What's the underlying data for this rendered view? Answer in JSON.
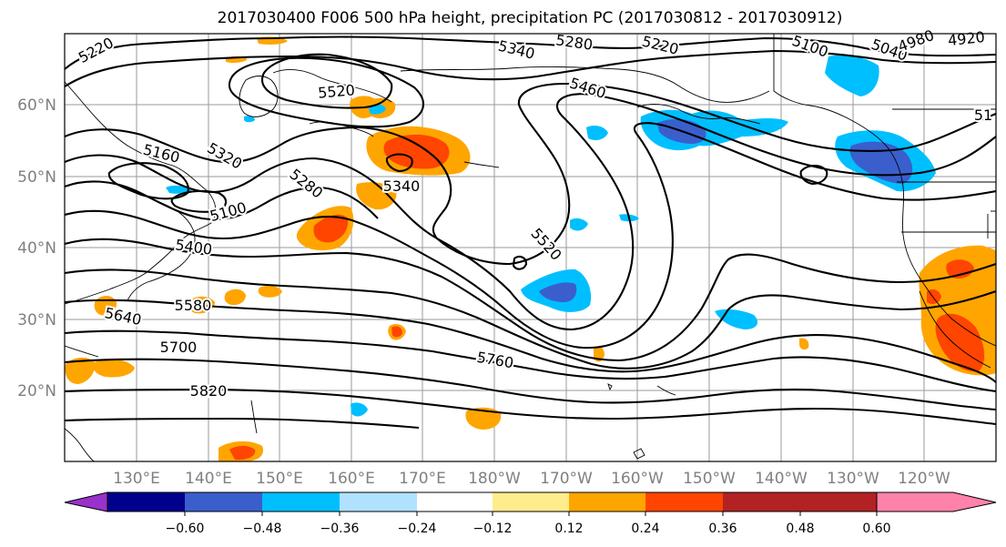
{
  "title": "2017030400 F006 500 hPa height, precipitation PC (2017030812 - 2017030912)",
  "lat_labels": [
    "60°N",
    "50°N",
    "40°N",
    "30°N",
    "20°N"
  ],
  "lon_labels": [
    "130°E",
    "140°E",
    "150°E",
    "160°E",
    "170°E",
    "180°W",
    "170°W",
    "160°W",
    "150°W",
    "140°W",
    "130°W",
    "120°W"
  ],
  "colorbar": {
    "colors": [
      "#9932cc",
      "#00008b",
      "#3a5fcd",
      "#00bfff",
      "#b0e2ff",
      "#ffffff",
      "#ffec8b",
      "#ffa500",
      "#ff4500",
      "#b22222",
      "#ff82ab"
    ],
    "tick_labels": [
      "−0.60",
      "−0.48",
      "−0.36",
      "−0.24",
      "−0.12",
      "0.12",
      "0.24",
      "0.36",
      "0.48",
      "0.60"
    ]
  },
  "contour_labels": [
    "5220",
    "5340",
    "5280",
    "5220",
    "5100",
    "5040",
    "4980",
    "4920",
    "5520",
    "5460",
    "51",
    "5160",
    "5320",
    "5280",
    "5340",
    "5100",
    "5400",
    "5520",
    "5580",
    "5640",
    "5700",
    "5760",
    "5820"
  ]
}
